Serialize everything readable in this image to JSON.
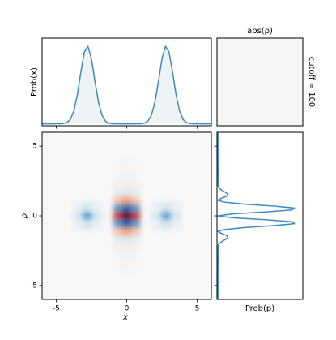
{
  "chart_data": [
    {
      "type": "line",
      "ylabel": "Prob(x)",
      "color": "#3b8bc2",
      "area": true,
      "ticklabels": false,
      "x": [
        -6,
        -4.75,
        -4.5,
        -4.25,
        -4,
        -3.75,
        -3.5,
        -3.25,
        -3,
        -2.75,
        -2.5,
        -2.25,
        -2,
        -1.75,
        -1.5,
        -1.25,
        -1,
        0,
        1,
        1.25,
        1.5,
        1.75,
        2,
        2.25,
        2.5,
        2.75,
        3,
        3.25,
        3.5,
        3.75,
        4,
        4.25,
        4.5,
        4.75,
        6
      ],
      "values": [
        0,
        0.0002,
        0.0012,
        0.006,
        0.022,
        0.066,
        0.15,
        0.267,
        0.369,
        0.398,
        0.334,
        0.218,
        0.111,
        0.044,
        0.0136,
        0.0033,
        0.0006,
        0,
        0.0006,
        0.0033,
        0.0136,
        0.044,
        0.111,
        0.218,
        0.334,
        0.398,
        0.369,
        0.267,
        0.15,
        0.066,
        0.022,
        0.006,
        0.0012,
        0.0002,
        0
      ],
      "xlim": [
        -6,
        6
      ],
      "xticks": [
        -5,
        0,
        5
      ],
      "ylim": [
        -0.01,
        0.44
      ]
    },
    {
      "type": "matrix",
      "title": "abs(ρ)",
      "annotation": "cutoff = 100"
    },
    {
      "type": "heatmap",
      "xlabel": "x",
      "ylabel": "p",
      "colormap": "RdBu",
      "clim": [
        -0.3,
        0.3
      ],
      "ticklabels": true,
      "x": [
        -3.5,
        -2.8,
        -2.1,
        -3.5,
        -2.8,
        -2.1,
        -3.5,
        -2.8,
        -2.1,
        2.1,
        2.8,
        3.5,
        2.1,
        2.8,
        3.5,
        2.1,
        2.8,
        3.5,
        -0.6,
        0,
        0.6,
        -0.6,
        0,
        0.6,
        -0.6,
        0,
        0.6,
        -0.6,
        0,
        0.6,
        -0.6,
        0,
        0.6,
        -0.6,
        0,
        0.6,
        -0.6,
        0,
        0.6,
        -0.6,
        0,
        0.6,
        -0.6,
        0,
        0.6,
        -0.6,
        0,
        0.6,
        -0.6,
        0,
        0.6,
        -0.6,
        0,
        0.6,
        -0.6,
        0,
        0.6,
        -0.6,
        0,
        0.6,
        -0.6,
        0,
        0.6
      ],
      "y": [
        0.7,
        0.7,
        0.7,
        0,
        0,
        0,
        -0.7,
        -0.7,
        -0.7,
        0.7,
        0.7,
        0.7,
        0,
        0,
        0,
        -0.7,
        -0.7,
        -0.7,
        -3.92,
        -3.92,
        -3.92,
        -3.36,
        -3.36,
        -3.36,
        -2.8,
        -2.8,
        -2.8,
        -2.24,
        -2.24,
        -2.24,
        -1.68,
        -1.68,
        -1.68,
        -1.12,
        -1.12,
        -1.12,
        -0.56,
        -0.56,
        -0.56,
        0,
        0,
        0,
        0.56,
        0.56,
        0.56,
        1.12,
        1.12,
        1.12,
        1.68,
        1.68,
        1.68,
        2.24,
        2.24,
        2.24,
        2.8,
        2.8,
        2.8,
        3.36,
        3.36,
        3.36,
        3.92,
        3.92,
        3.92
      ],
      "values": [
        0.022,
        0.06,
        0.022,
        0.06,
        0.16,
        0.06,
        0.022,
        0.06,
        0.022,
        0.022,
        0.06,
        0.022,
        0.06,
        0.16,
        0.06,
        0.022,
        0.06,
        0.022,
        0.004,
        0.006,
        0.004,
        -0.007,
        -0.01,
        -0.007,
        0.011,
        0.015,
        0.011,
        -0.018,
        -0.025,
        -0.018,
        0.035,
        0.05,
        0.035,
        -0.084,
        -0.12,
        -0.084,
        0.17,
        0.24,
        0.17,
        -0.21,
        -0.3,
        -0.21,
        0.17,
        0.24,
        0.17,
        -0.084,
        -0.12,
        -0.084,
        0.035,
        0.05,
        0.035,
        -0.018,
        -0.025,
        -0.018,
        0.011,
        0.015,
        0.011,
        -0.007,
        -0.01,
        -0.007,
        0.004,
        0.006,
        0.004
      ],
      "xlim": [
        -6,
        6
      ],
      "ylim": [
        -6,
        6
      ],
      "xticks": [
        -5,
        0,
        5
      ],
      "yticks": [
        -5,
        0,
        5
      ]
    },
    {
      "type": "line",
      "orientation": "horizontal",
      "xlabel": "Prob(p)",
      "color": "#3b8bc2",
      "area": false,
      "ticklabels": false,
      "y": [
        -6,
        -2.8,
        -2.66,
        -2.52,
        -2.38,
        -2.24,
        -2.1,
        -1.96,
        -1.82,
        -1.68,
        -1.54,
        -1.4,
        -1.26,
        -1.12,
        -0.98,
        -0.84,
        -0.7,
        -0.56,
        -0.42,
        -0.28,
        -0.14,
        0,
        0.14,
        0.28,
        0.42,
        0.56,
        0.7,
        0.84,
        0.98,
        1.12,
        1.26,
        1.4,
        1.54,
        1.68,
        1.82,
        1.96,
        2.1,
        2.24,
        2.38,
        2.52,
        2.66,
        2.8,
        6
      ],
      "values": [
        0,
        0.0009,
        0.0015,
        0.0016,
        0.0009,
        0,
        0.003,
        0.0167,
        0.0456,
        0.083,
        0.106,
        0.089,
        0.036,
        0,
        0.068,
        0.287,
        0.591,
        0.812,
        0.784,
        0.501,
        0.155,
        0,
        0.155,
        0.501,
        0.784,
        0.812,
        0.591,
        0.287,
        0.068,
        0,
        0.036,
        0.089,
        0.106,
        0.083,
        0.0456,
        0.0167,
        0.003,
        0,
        0.0009,
        0.0016,
        0.0015,
        0.0009,
        0
      ],
      "xlim": [
        -0.01,
        0.9
      ],
      "ylim": [
        -6,
        6
      ],
      "yticks": [
        -5,
        0,
        5
      ]
    }
  ]
}
